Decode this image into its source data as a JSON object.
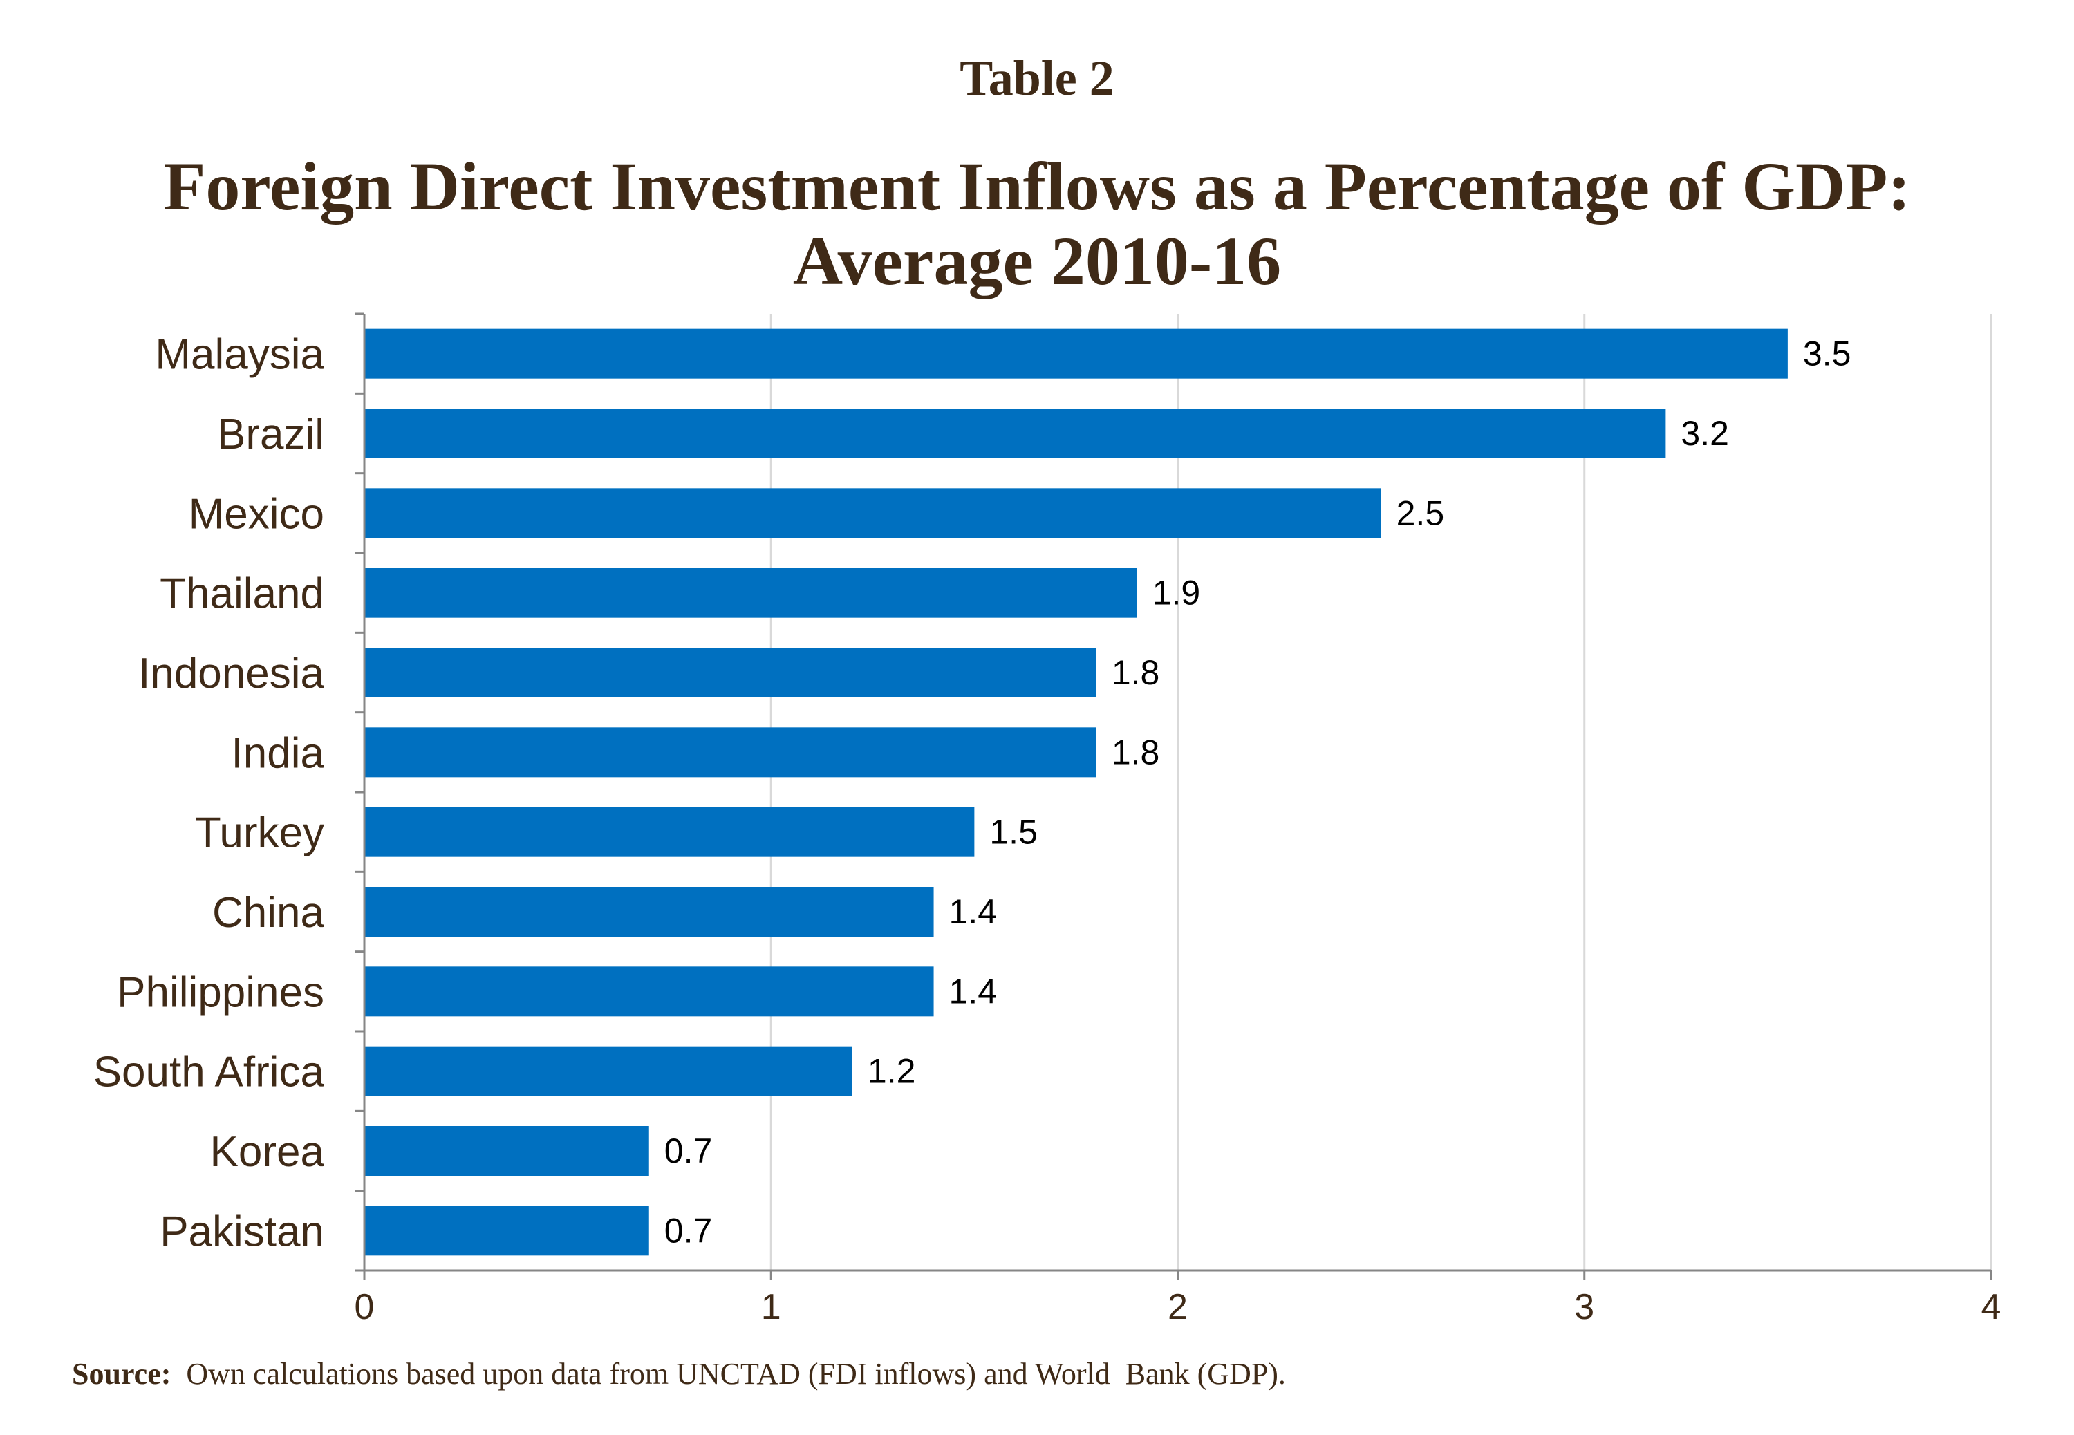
{
  "header": {
    "table_label": "Table 2",
    "title_line1": "Foreign Direct Investment Inflows as a Percentage of GDP:",
    "title_line2": "Average 2010-16"
  },
  "footer": {
    "source_label": "Source:",
    "source_text": "  Own calculations based upon data from UNCTAD (FDI inflows) and World  Bank (GDP)."
  },
  "colors": {
    "bar": "#0070c0",
    "text": "#3f2a17",
    "grid": "#d9d9d9",
    "axis": "#868686"
  },
  "chart_data": {
    "type": "bar",
    "orientation": "horizontal",
    "title": "Foreign Direct Investment Inflows as a Percentage of GDP: Average 2010-16",
    "categories": [
      "Malaysia",
      "Brazil",
      "Mexico",
      "Thailand",
      "Indonesia",
      "India",
      "Turkey",
      "China",
      "Philippines",
      "South Africa",
      "Korea",
      "Pakistan"
    ],
    "values": [
      3.5,
      3.2,
      2.5,
      1.9,
      1.8,
      1.8,
      1.5,
      1.4,
      1.4,
      1.2,
      0.7,
      0.7
    ],
    "data_labels": [
      "3.5",
      "3.2",
      "2.5",
      "1.9",
      "1.8",
      "1.8",
      "1.5",
      "1.4",
      "1.4",
      "1.2",
      "0.7",
      "0.7"
    ],
    "xlim": [
      0,
      4
    ],
    "xticks": [
      0,
      1,
      2,
      3,
      4
    ],
    "xtick_labels": [
      "0",
      "1",
      "2",
      "3",
      "4"
    ],
    "xlabel": "",
    "ylabel": "",
    "grid": "vertical",
    "legend": "none"
  }
}
